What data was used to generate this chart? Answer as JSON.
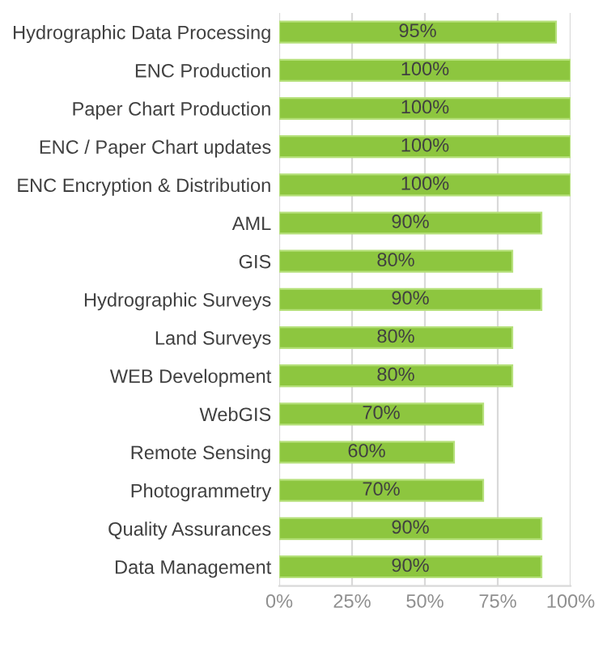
{
  "chart_data": {
    "type": "bar",
    "orientation": "horizontal",
    "categories": [
      "Hydrographic Data Processing",
      "ENC Production",
      "Paper Chart Production",
      "ENC / Paper Chart updates",
      "ENC Encryption & Distribution",
      "AML",
      "GIS",
      "Hydrographic Surveys",
      "Land Surveys",
      "WEB Development",
      "WebGIS",
      "Remote Sensing",
      "Photogrammetry",
      "Quality Assurances",
      "Data Management"
    ],
    "values": [
      95,
      100,
      100,
      100,
      100,
      90,
      80,
      90,
      80,
      80,
      70,
      60,
      70,
      90,
      90
    ],
    "value_labels": [
      "95%",
      "100%",
      "100%",
      "100%",
      "100%",
      "90%",
      "80%",
      "90%",
      "80%",
      "80%",
      "70%",
      "60%",
      "70%",
      "90%",
      "90%"
    ],
    "color": "#8dc63f",
    "xlim": [
      0,
      100
    ],
    "xticks": [
      {
        "value": 0,
        "label": "0%"
      },
      {
        "value": 25,
        "label": "25%"
      },
      {
        "value": 50,
        "label": "50%"
      },
      {
        "value": 75,
        "label": "75%"
      },
      {
        "value": 100,
        "label": "100%"
      }
    ],
    "grid": "x",
    "legend": false
  }
}
